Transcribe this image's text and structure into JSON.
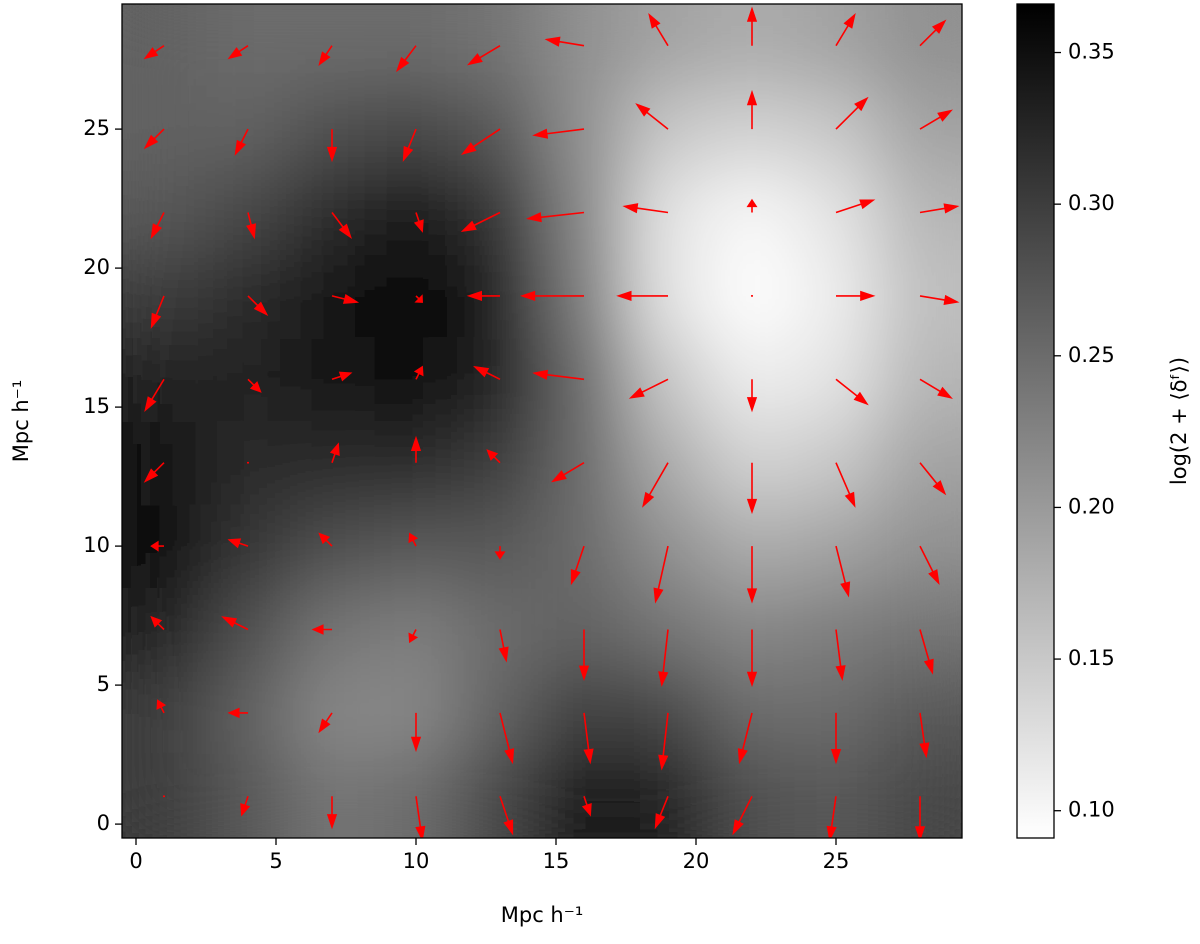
{
  "chart_data": {
    "type": "heatmap",
    "xlabel": "Mpc h⁻¹",
    "ylabel": "Mpc h⁻¹",
    "colorbar_label": "log(2 + ⟨δᶠ⟩)",
    "colormap": "gray_r",
    "xlim": [
      -0.5,
      29.5
    ],
    "ylim": [
      -0.5,
      29.5
    ],
    "xticks": [
      0,
      5,
      10,
      15,
      20,
      25
    ],
    "yticks": [
      0,
      5,
      10,
      15,
      20,
      25
    ],
    "clim": [
      0.091,
      0.366
    ],
    "cticks": [
      {
        "value": 0.1,
        "label": "0.10"
      },
      0.15,
      {
        "value": 0.2,
        "label": "0.20"
      },
      0.25,
      {
        "value": 0.3,
        "label": "0.30"
      },
      0.35
    ],
    "cell_size": 3,
    "x": [
      1,
      4,
      7,
      10,
      13,
      16,
      19,
      22,
      25,
      28
    ],
    "y": [
      1,
      4,
      7,
      10,
      13,
      16,
      19,
      22,
      25,
      28
    ],
    "z": [
      [
        0.3,
        0.27,
        0.24,
        0.25,
        0.29,
        0.34,
        0.33,
        0.28,
        0.27,
        0.29
      ],
      [
        0.3,
        0.26,
        0.22,
        0.22,
        0.26,
        0.3,
        0.29,
        0.25,
        0.25,
        0.27
      ],
      [
        0.33,
        0.28,
        0.24,
        0.23,
        0.25,
        0.26,
        0.24,
        0.22,
        0.23,
        0.24
      ],
      [
        0.35,
        0.31,
        0.28,
        0.27,
        0.27,
        0.25,
        0.21,
        0.18,
        0.19,
        0.21
      ],
      [
        0.34,
        0.32,
        0.32,
        0.32,
        0.3,
        0.25,
        0.18,
        0.14,
        0.15,
        0.19
      ],
      [
        0.33,
        0.33,
        0.34,
        0.35,
        0.33,
        0.25,
        0.15,
        0.11,
        0.12,
        0.17
      ],
      [
        0.3,
        0.32,
        0.34,
        0.36,
        0.33,
        0.23,
        0.12,
        0.09,
        0.11,
        0.16
      ],
      [
        0.27,
        0.29,
        0.32,
        0.34,
        0.31,
        0.22,
        0.12,
        0.1,
        0.12,
        0.17
      ],
      [
        0.26,
        0.26,
        0.28,
        0.29,
        0.27,
        0.21,
        0.15,
        0.14,
        0.15,
        0.19
      ],
      [
        0.26,
        0.25,
        0.25,
        0.25,
        0.24,
        0.21,
        0.19,
        0.18,
        0.19,
        0.21
      ]
    ],
    "quiver": {
      "color": "#ff0000",
      "u": [
        [
          0.0,
          -0.1,
          0.0,
          0.1,
          0.2,
          0.1,
          -0.2,
          -0.3,
          -0.1,
          0.0
        ],
        [
          -0.1,
          -0.3,
          -0.2,
          0.0,
          0.2,
          0.1,
          -0.1,
          -0.2,
          0.0,
          0.1
        ],
        [
          -0.2,
          -0.4,
          -0.3,
          -0.1,
          0.1,
          0.0,
          -0.1,
          0.0,
          0.1,
          0.2
        ],
        [
          -0.2,
          -0.3,
          -0.2,
          -0.1,
          0.0,
          -0.2,
          -0.2,
          0.0,
          0.2,
          0.3
        ],
        [
          -0.3,
          0.0,
          0.1,
          0.0,
          -0.2,
          -0.5,
          -0.4,
          0.0,
          0.3,
          0.4
        ],
        [
          -0.3,
          0.2,
          0.3,
          0.1,
          -0.4,
          -0.8,
          -0.6,
          0.0,
          0.5,
          0.5
        ],
        [
          -0.2,
          0.3,
          0.4,
          0.1,
          -0.5,
          -1.0,
          -0.8,
          0.0,
          0.6,
          0.6
        ],
        [
          -0.2,
          0.1,
          0.3,
          0.1,
          -0.6,
          -0.9,
          -0.7,
          0.0,
          0.6,
          0.6
        ],
        [
          -0.3,
          -0.2,
          0.0,
          -0.2,
          -0.6,
          -0.8,
          -0.5,
          0.0,
          0.5,
          0.5
        ],
        [
          -0.3,
          -0.3,
          -0.2,
          -0.3,
          -0.5,
          -0.6,
          -0.3,
          0.0,
          0.3,
          0.4
        ]
      ],
      "v": [
        [
          0.0,
          -0.3,
          -0.5,
          -0.7,
          -0.6,
          -0.3,
          -0.5,
          -0.6,
          -0.7,
          -0.7
        ],
        [
          0.2,
          0.0,
          -0.3,
          -0.6,
          -0.8,
          -0.8,
          -0.9,
          -0.8,
          -0.8,
          -0.7
        ],
        [
          0.2,
          0.2,
          0.0,
          -0.2,
          -0.5,
          -0.8,
          -0.9,
          -0.9,
          -0.8,
          -0.7
        ],
        [
          0.0,
          0.1,
          0.2,
          0.2,
          -0.2,
          -0.6,
          -0.9,
          -0.9,
          -0.8,
          -0.6
        ],
        [
          -0.3,
          0.0,
          0.3,
          0.4,
          0.2,
          -0.3,
          -0.7,
          -0.8,
          -0.7,
          -0.5
        ],
        [
          -0.5,
          -0.2,
          0.1,
          0.2,
          0.2,
          0.1,
          -0.3,
          -0.5,
          -0.4,
          -0.3
        ],
        [
          -0.5,
          -0.3,
          -0.1,
          -0.1,
          0.0,
          0.0,
          0.0,
          0.0,
          0.0,
          -0.1
        ],
        [
          -0.4,
          -0.4,
          -0.4,
          -0.3,
          -0.3,
          -0.1,
          0.1,
          0.2,
          0.2,
          0.1
        ],
        [
          -0.3,
          -0.4,
          -0.5,
          -0.5,
          -0.4,
          -0.1,
          0.4,
          0.6,
          0.5,
          0.3
        ],
        [
          -0.2,
          -0.2,
          -0.3,
          -0.4,
          -0.3,
          0.1,
          0.5,
          0.6,
          0.5,
          0.4
        ]
      ]
    }
  }
}
